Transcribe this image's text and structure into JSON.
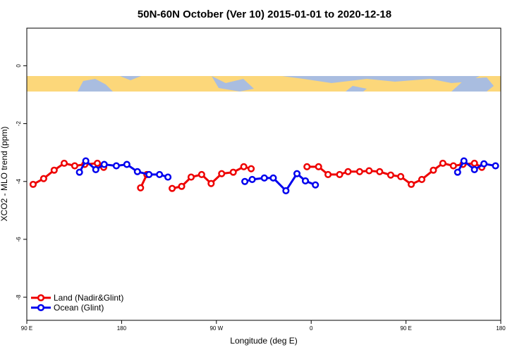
{
  "chart_data": {
    "type": "line",
    "title": "50N-60N October (Ver 10)   2015-01-01 to 2020-12-18",
    "x_label": "Longitude (deg E)",
    "y_label": "XCO2 - MLO trend (ppm)",
    "xlim": [
      90,
      540
    ],
    "xticks": [
      {
        "value": 90,
        "label": "90 E"
      },
      180,
      {
        "value": 270,
        "label": "90 W"
      },
      {
        "value": 360,
        "label": "0"
      },
      {
        "value": 450,
        "label": "90 E"
      },
      {
        "value": 540,
        "label": "180"
      }
    ],
    "ylim": [
      -8.8,
      1.3
    ],
    "yticks": [
      0,
      -2,
      -4,
      -6,
      -8
    ],
    "legend": "bottom-left",
    "series": [
      {
        "name": "Land (Nadir&Glint)",
        "color": "#ee0000",
        "x": [
          96,
          106,
          116,
          125.5,
          135.5,
          145,
          157,
          163,
          180,
          198,
          204,
          215,
          228,
          237,
          246,
          256,
          265,
          275,
          286,
          296,
          303,
          330,
          356,
          367,
          376,
          387,
          395,
          406,
          415,
          425,
          435.5,
          445,
          455,
          465,
          476,
          485,
          495,
          504,
          515,
          522
        ],
        "values": [
          -4.1,
          -3.9,
          -3.61,
          -3.37,
          -3.46,
          -3.41,
          -3.37,
          -3.51,
          null,
          -4.22,
          -3.76,
          null,
          -4.24,
          -4.17,
          -3.85,
          -3.76,
          -4.07,
          -3.73,
          -3.68,
          -3.49,
          -3.56,
          null,
          -3.49,
          -3.49,
          -3.76,
          -3.76,
          -3.66,
          -3.66,
          -3.63,
          -3.66,
          -3.78,
          -3.83,
          -4.1,
          -3.93,
          -3.61,
          -3.37,
          -3.46,
          -3.41,
          -3.37,
          -3.51
        ]
      },
      {
        "name": "Ocean (Glint)",
        "color": "#0000ee",
        "x": [
          140,
          146,
          155.5,
          163.5,
          175,
          185,
          195,
          206,
          216,
          224,
          260,
          297,
          304,
          315.5,
          324,
          336,
          346.5,
          354.5,
          364,
          430,
          499,
          505,
          515,
          524,
          535
        ],
        "values": [
          -3.68,
          -3.29,
          -3.59,
          -3.41,
          -3.46,
          -3.41,
          -3.66,
          -3.76,
          -3.76,
          -3.85,
          null,
          -4.0,
          -3.93,
          -3.88,
          -3.88,
          -4.32,
          -3.73,
          -3.98,
          -4.12,
          null,
          -3.68,
          -3.29,
          -3.59,
          -3.39,
          -3.46
        ]
      }
    ]
  }
}
